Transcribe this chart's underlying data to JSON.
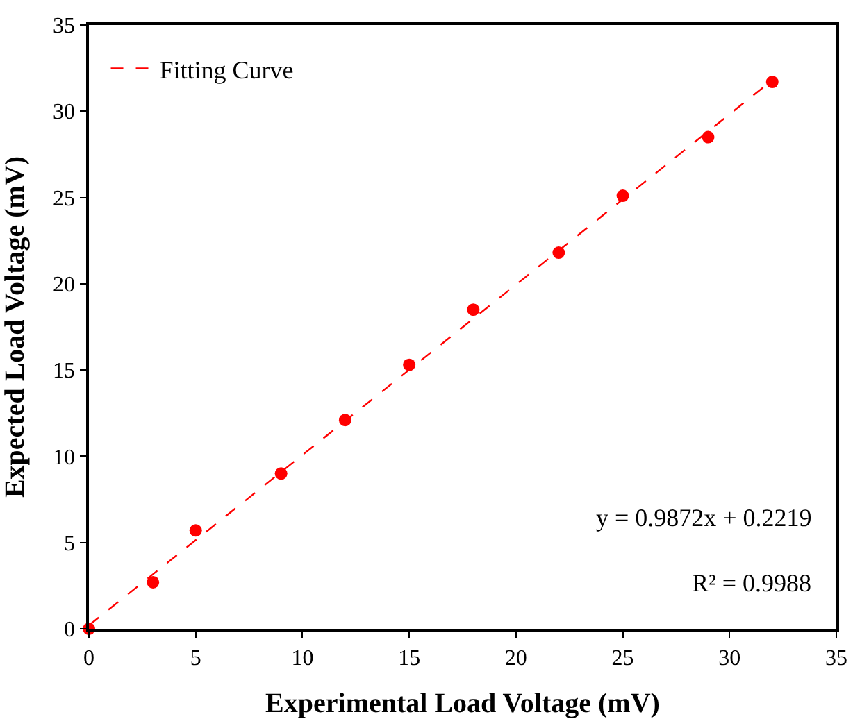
{
  "chart_data": {
    "type": "scatter",
    "xlabel": "Experimental Load Voltage (mV)",
    "ylabel": "Expected Load Voltage (mV)",
    "xlim": [
      0,
      35
    ],
    "ylim": [
      0,
      35
    ],
    "xticks": [
      0,
      5,
      10,
      15,
      20,
      25,
      30,
      35
    ],
    "yticks": [
      0,
      5,
      10,
      15,
      20,
      25,
      30,
      35
    ],
    "grid": false,
    "legend": "top left",
    "series": [
      {
        "color": "#ff0000",
        "marker": "circle",
        "x": [
          0,
          3,
          5,
          9,
          12,
          15,
          18,
          22,
          25,
          29,
          32
        ],
        "values": [
          0,
          2.7,
          5.7,
          9,
          12.1,
          15.3,
          18.5,
          21.8,
          25.1,
          28.5,
          31.7
        ]
      },
      {
        "type": "line",
        "name": "Fitting Curve",
        "color": "#ff0000",
        "marker": "none",
        "line_style": "dashed",
        "x": [
          0,
          32
        ],
        "values": [
          0.2,
          31.8
        ]
      }
    ],
    "annotations": [
      {
        "text": "y = 0.9872x + 0.2219"
      },
      {
        "text": "R² = 0.9988"
      }
    ]
  }
}
